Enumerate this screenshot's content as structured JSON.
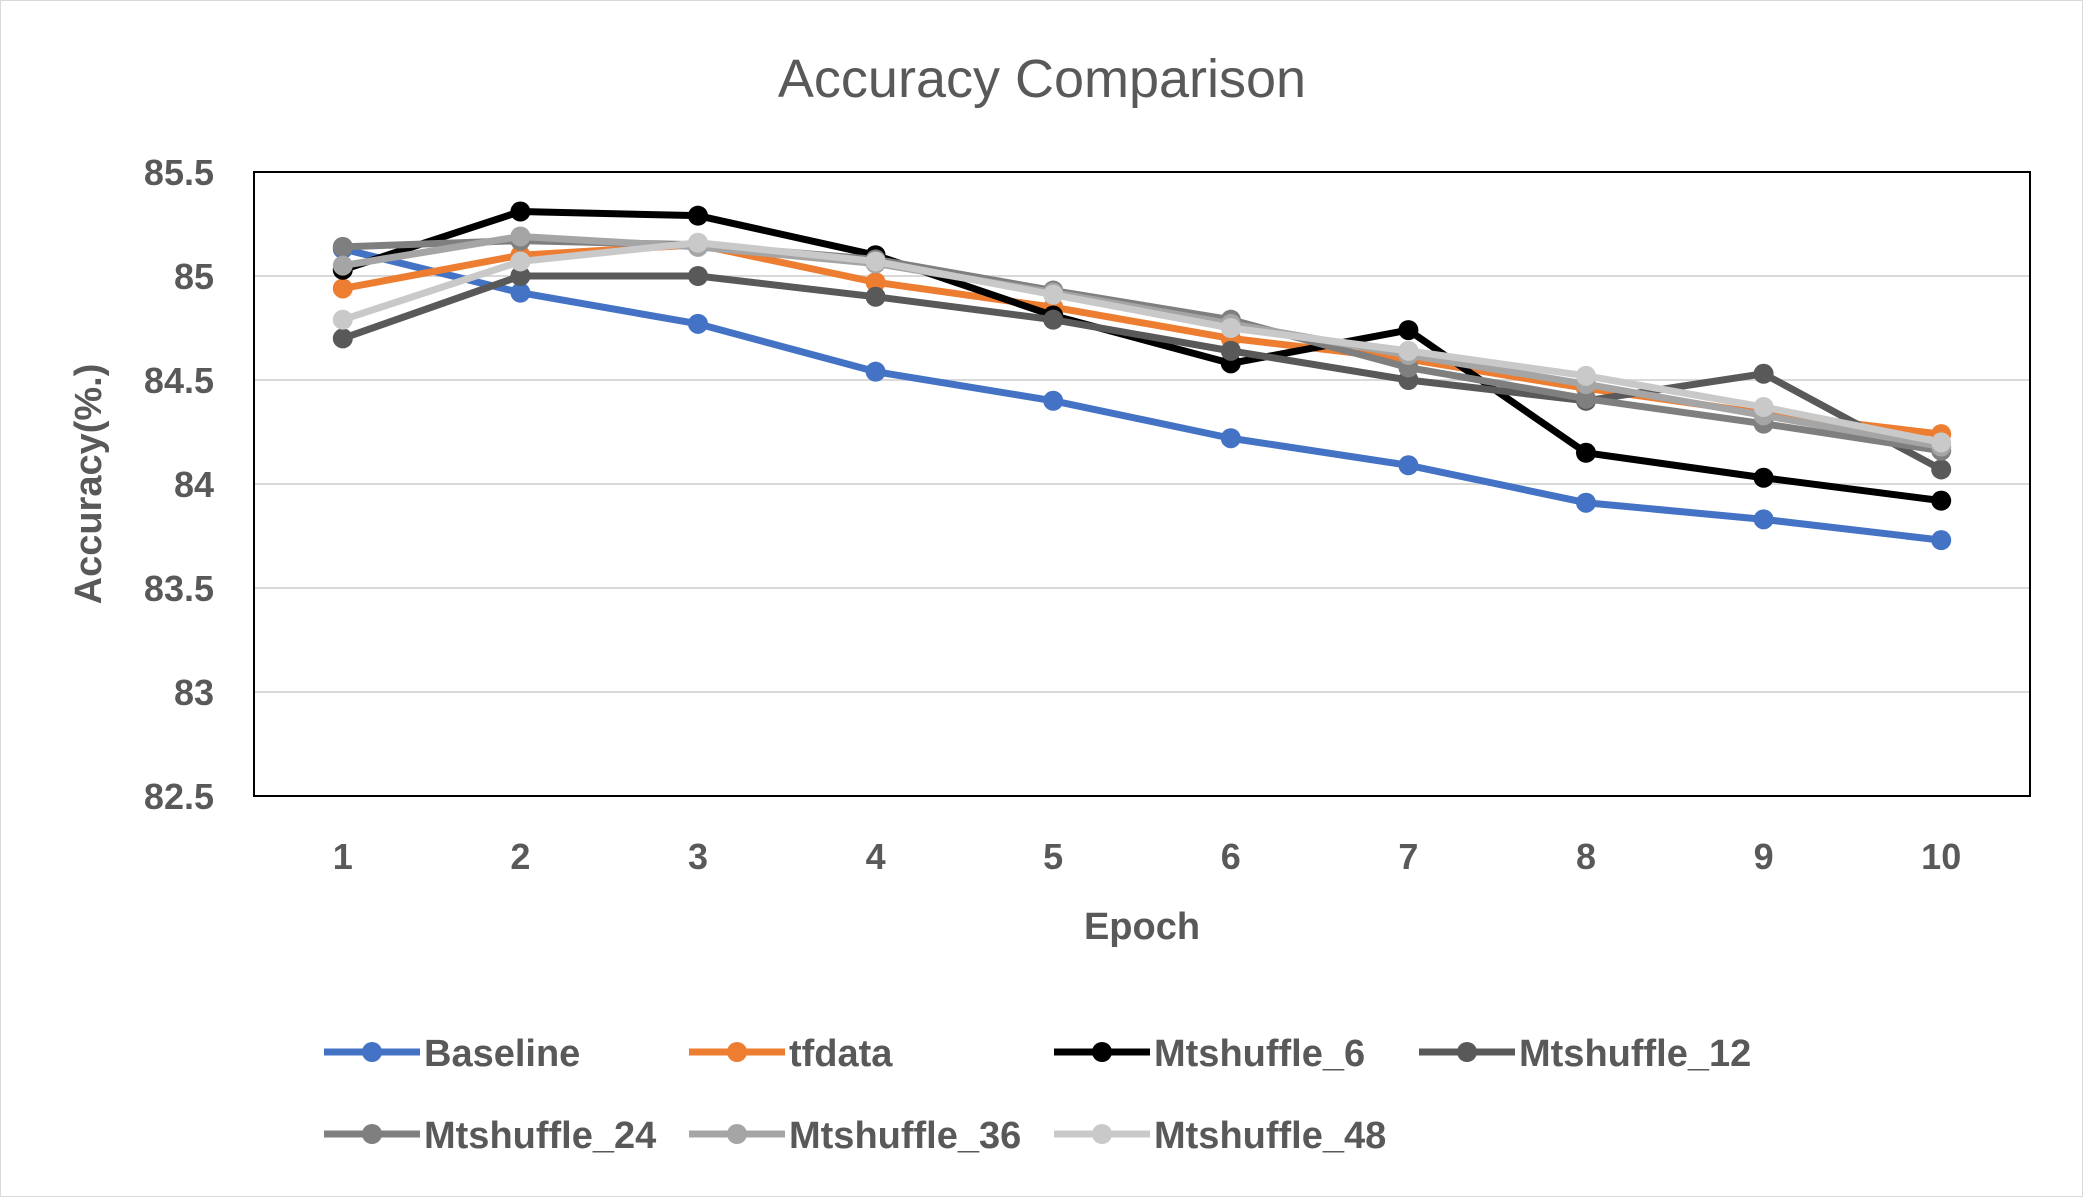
{
  "chart_data": {
    "type": "line",
    "title": "Accuracy Comparison",
    "xlabel": "Epoch",
    "ylabel": "Accuracy(%.)",
    "categories": [
      "1",
      "2",
      "3",
      "4",
      "5",
      "6",
      "7",
      "8",
      "9",
      "10"
    ],
    "ylim": [
      82.5,
      85.5
    ],
    "yticks": [
      "82.5",
      "83",
      "83.5",
      "84",
      "84.5",
      "85",
      "85.5"
    ],
    "ytick_values": [
      82.5,
      83,
      83.5,
      84,
      84.5,
      85,
      85.5
    ],
    "grid": true,
    "legend_position": "bottom",
    "series": [
      {
        "name": "Baseline",
        "color": "#4472c4",
        "values": [
          85.13,
          84.92,
          84.77,
          84.54,
          84.4,
          84.22,
          84.09,
          83.91,
          83.83,
          83.73
        ]
      },
      {
        "name": "tfdata",
        "color": "#ed7d31",
        "values": [
          84.94,
          85.1,
          85.15,
          84.97,
          84.85,
          84.7,
          84.6,
          84.46,
          84.34,
          84.24
        ]
      },
      {
        "name": "Mtshuffle_6",
        "color": "#000000",
        "values": [
          85.03,
          85.31,
          85.29,
          85.1,
          84.81,
          84.58,
          84.74,
          84.15,
          84.03,
          83.92
        ]
      },
      {
        "name": "Mtshuffle_12",
        "color": "#595959",
        "values": [
          84.7,
          85.0,
          85.0,
          84.9,
          84.79,
          84.64,
          84.5,
          84.4,
          84.53,
          84.07
        ]
      },
      {
        "name": "Mtshuffle_24",
        "color": "#7f7f7f",
        "values": [
          85.14,
          85.17,
          85.15,
          85.08,
          84.93,
          84.79,
          84.56,
          84.41,
          84.29,
          84.16
        ]
      },
      {
        "name": "Mtshuffle_36",
        "color": "#a5a5a5",
        "values": [
          85.05,
          85.19,
          85.14,
          85.06,
          84.92,
          84.77,
          84.62,
          84.48,
          84.33,
          84.18
        ]
      },
      {
        "name": "Mtshuffle_48",
        "color": "#c9c9c9",
        "values": [
          84.79,
          85.07,
          85.16,
          85.07,
          84.91,
          84.75,
          84.64,
          84.52,
          84.37,
          84.2
        ]
      }
    ]
  }
}
